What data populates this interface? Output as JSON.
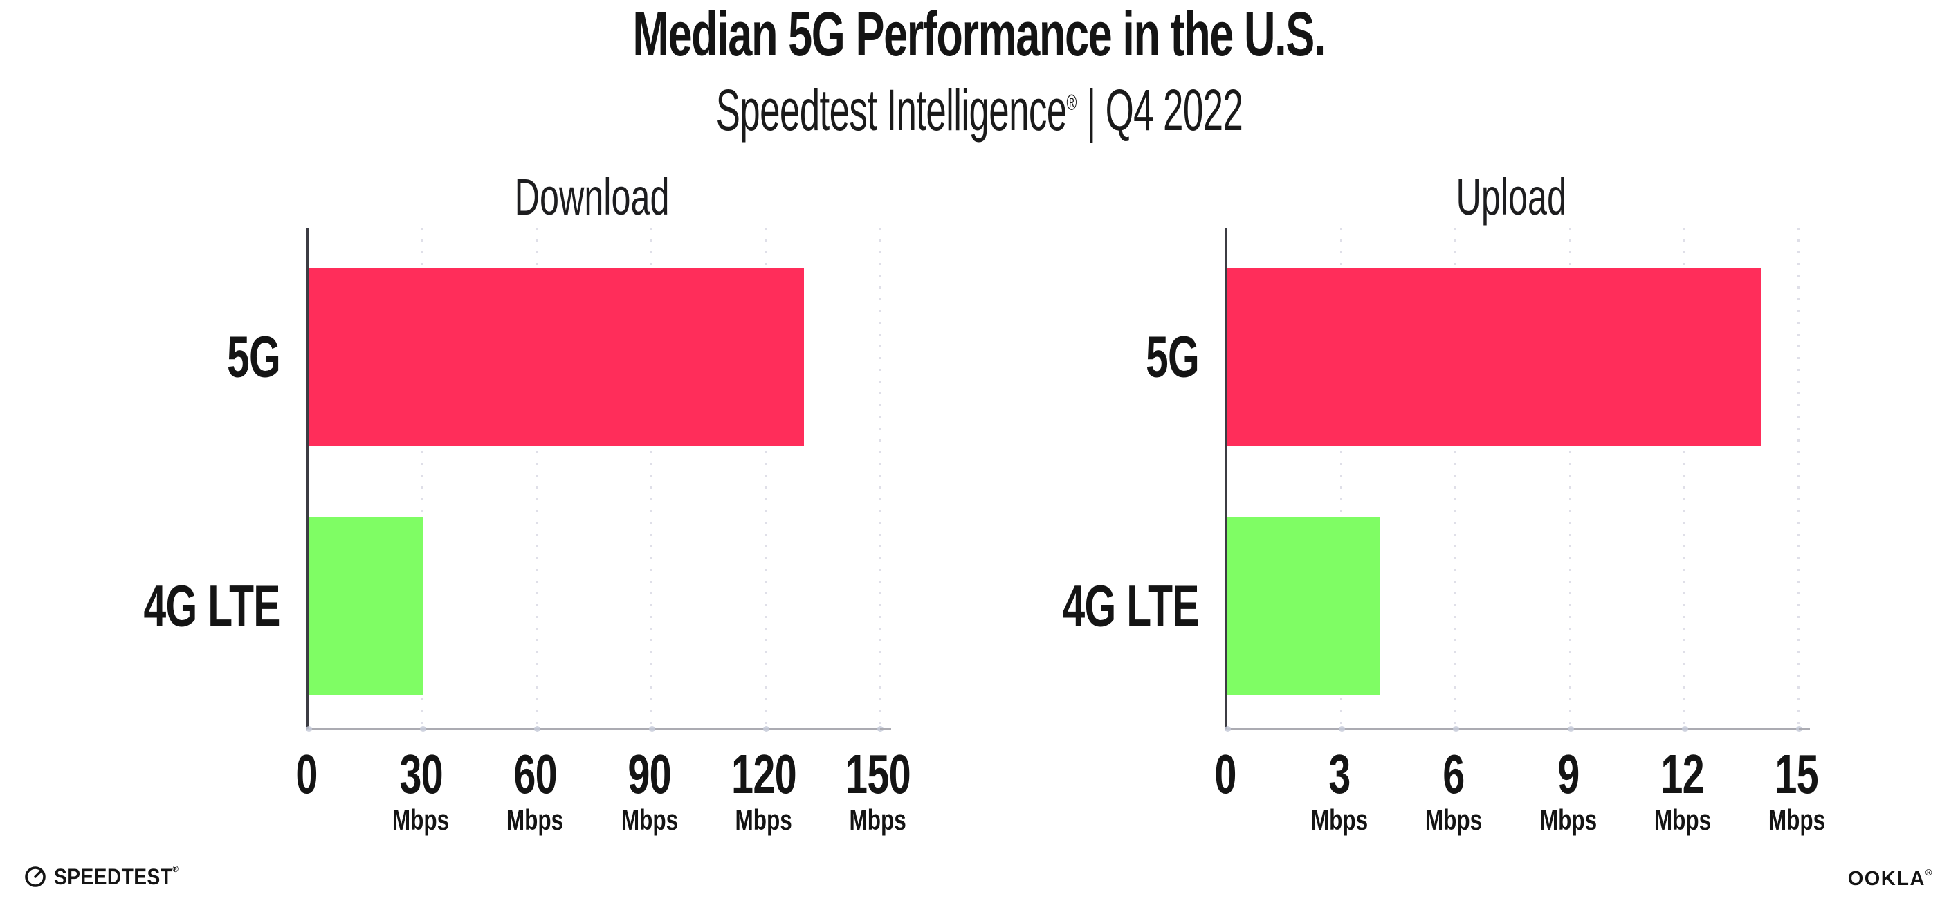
{
  "header": {
    "title": "Median 5G Performance in the U.S.",
    "subtitle_brand": "Speedtest Intelligence",
    "subtitle_reg": "®",
    "subtitle_rest": " | Q4 2022"
  },
  "colors": {
    "bar_5g": "#FF2D5A",
    "bar_4g_lte": "#7FFD64",
    "grid_dots": "#dfdfe8",
    "x_axis_line": "#ababb2",
    "y_axis_line": "#3c3c43",
    "text": "#141414"
  },
  "chart_data": [
    {
      "type": "bar",
      "orientation": "horizontal",
      "title": "Download",
      "categories": [
        "5G",
        "4G LTE"
      ],
      "values": [
        130,
        30
      ],
      "unit": "Mbps",
      "xlim": [
        0,
        150
      ],
      "xticks": [
        "0",
        "30",
        "60",
        "90",
        "120",
        "150"
      ],
      "bar_colors": [
        "#FF2D5A",
        "#7FFD64"
      ],
      "grid": "vertical-dotted",
      "legend": "none"
    },
    {
      "type": "bar",
      "orientation": "horizontal",
      "title": "Upload",
      "categories": [
        "5G",
        "4G LTE"
      ],
      "values": [
        14,
        4
      ],
      "unit": "Mbps",
      "xlim": [
        0,
        15
      ],
      "xticks": [
        "0",
        "3",
        "6",
        "9",
        "12",
        "15"
      ],
      "bar_colors": [
        "#FF2D5A",
        "#7FFD64"
      ],
      "grid": "vertical-dotted",
      "legend": "none"
    }
  ],
  "footer": {
    "speedtest_label": "SPEEDTEST",
    "speedtest_mark": "®",
    "ookla_label": "OOKLA",
    "ookla_mark": "®"
  }
}
